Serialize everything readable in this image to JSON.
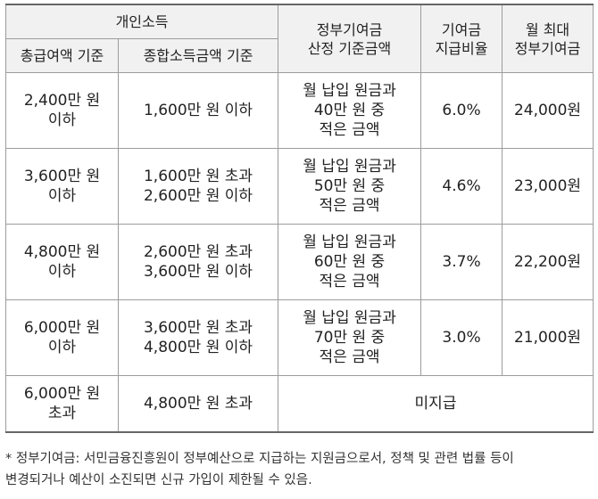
{
  "header": {
    "personal_income": "개인소득",
    "gross_salary_basis": "총급여액 기준",
    "total_income_basis": "종합소득금액 기준",
    "gov_contribution_basis": "정부기여금\n산정 기준금액",
    "contribution_rate": "기여금\n지급비율",
    "monthly_max": "월 최대\n정부기여금"
  },
  "rows": [
    {
      "gross": "2,400만 원\n이하",
      "total": "1,600만 원 이하",
      "basis": "월 납입 원금과\n40만 원 중\n적은 금액",
      "rate": "6.0%",
      "max": "24,000원"
    },
    {
      "gross": "3,600만 원\n이하",
      "total": "1,600만 원 초과\n2,600만 원 이하",
      "basis": "월 납입 원금과\n50만 원 중\n적은 금액",
      "rate": "4.6%",
      "max": "23,000원"
    },
    {
      "gross": "4,800만 원\n이하",
      "total": "2,600만 원 초과\n3,600만 원 이하",
      "basis": "월 납입 원금과\n60만 원 중\n적은 금액",
      "rate": "3.7%",
      "max": "22,200원"
    },
    {
      "gross": "6,000만 원\n이하",
      "total": "3,600만 원 초과\n4,800만 원 이하",
      "basis": "월 납입 원금과\n70만 원 중\n적은 금액",
      "rate": "3.0%",
      "max": "21,000원"
    }
  ],
  "last_row": {
    "gross": "6,000만 원\n초과",
    "total": "4,800만 원 초과",
    "not_paid": "미지급"
  },
  "footnote": {
    "line1": "* 정부기여금: 서민금융진흥원이 정부예산으로 지급하는 지원금으로서, 정책 및 관련 법률 등이",
    "line2": "변경되거나 예산이 소진되면 신규 가입이 제한될 수 있음."
  }
}
